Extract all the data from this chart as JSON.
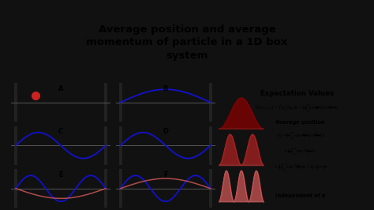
{
  "title_line1": "Average position and average",
  "title_line2": "momentum of particle in a 1D box",
  "title_line3": "system",
  "title_bg": "#ffff00",
  "title_fg": "#000000",
  "bg_color": "#111111",
  "panel_bg": "#ffffff",
  "blue_color": "#1111cc",
  "red_color": "#cc2222",
  "pink_color": "#cc5555",
  "dark_red": "#880000",
  "panel_labels": [
    "A",
    "B",
    "C",
    "D",
    "E",
    "F"
  ],
  "expectation_title": "Expectation Values",
  "right_bg": "#ffffff",
  "wave_plot_bg": "#cce0f0"
}
